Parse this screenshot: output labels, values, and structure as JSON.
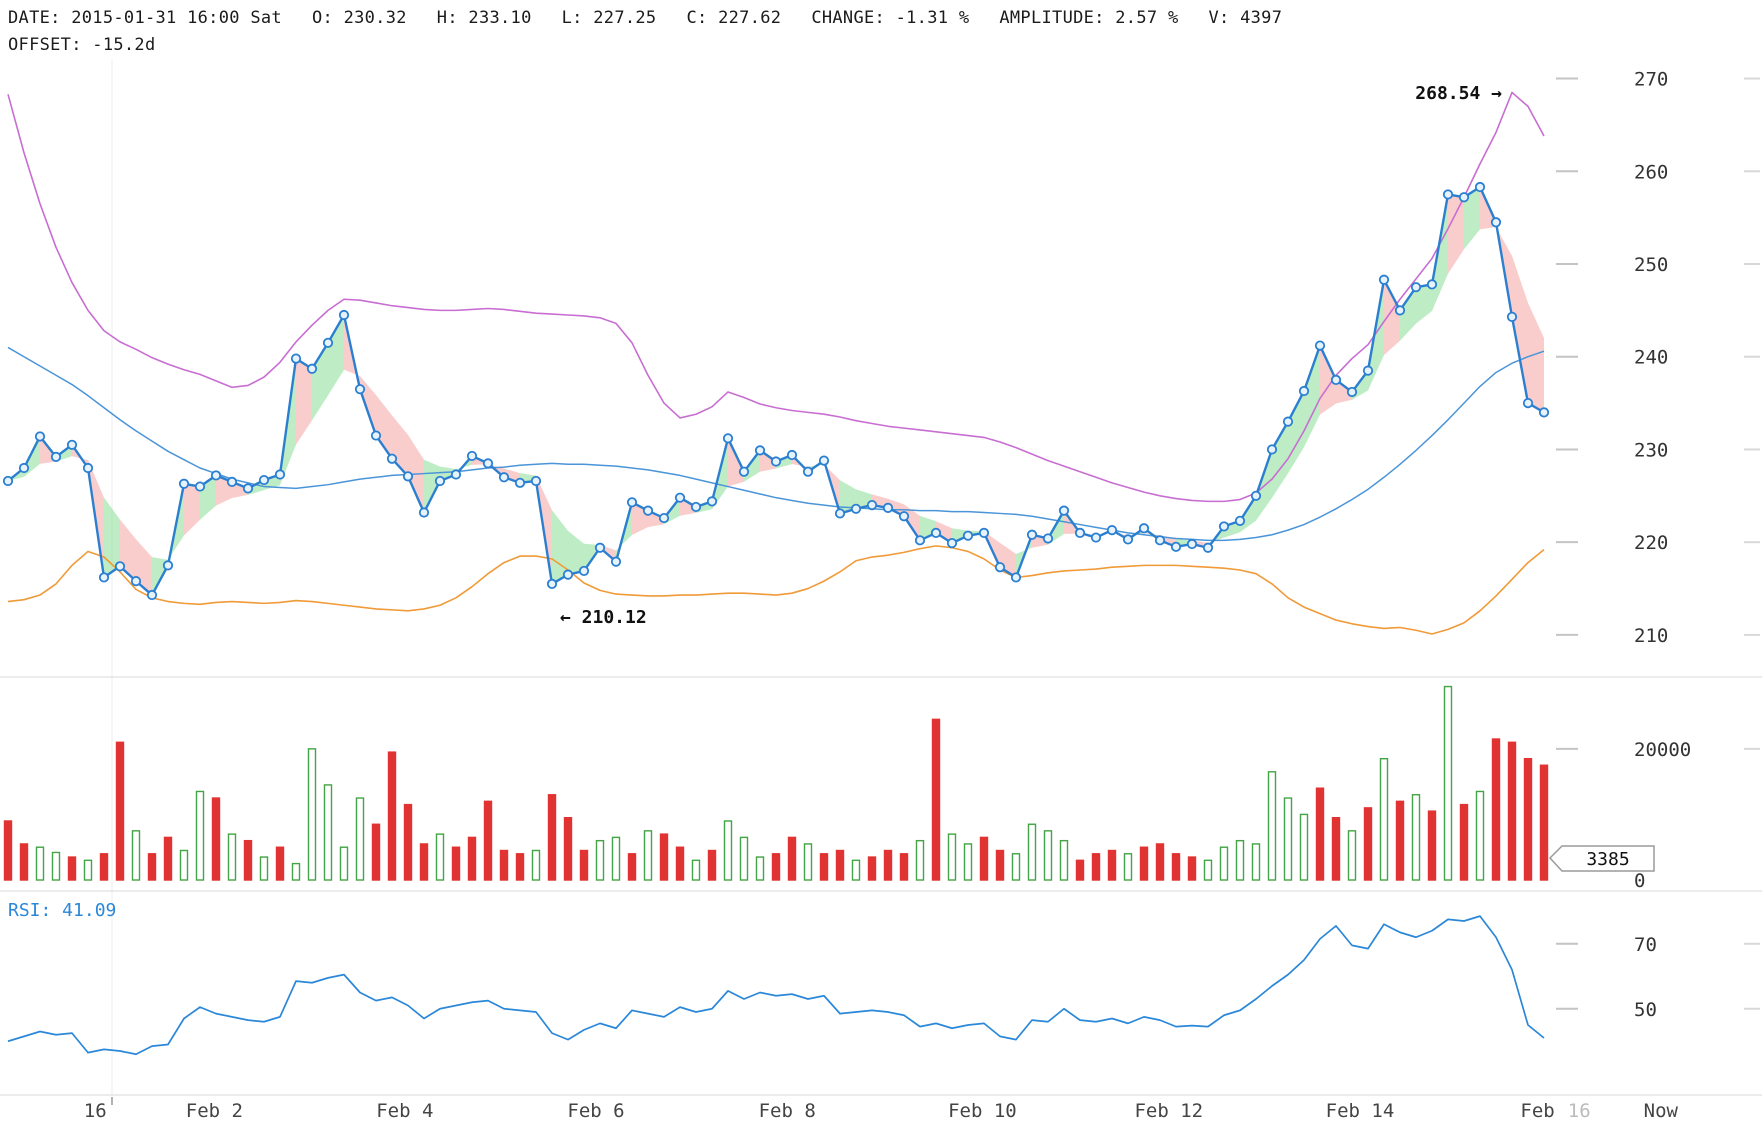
{
  "header": {
    "items": [
      {
        "label": "DATE:",
        "value": "2015-01-31 16:00 Sat"
      },
      {
        "label": "O:",
        "value": "230.32"
      },
      {
        "label": "H:",
        "value": "233.10"
      },
      {
        "label": "L:",
        "value": "227.25"
      },
      {
        "label": "C:",
        "value": "227.62"
      },
      {
        "label": "CHANGE:",
        "value": "-1.31 %"
      },
      {
        "label": "AMPLITUDE:",
        "value": "2.57 %"
      },
      {
        "label": "V:",
        "value": "4397"
      },
      {
        "label": "OFFSET:",
        "value": "-15.2d"
      }
    ]
  },
  "annotations": {
    "upper_band_max": "268.54 →",
    "lower_band_min": "← 210.12",
    "rsi_label": "RSI: 41.09"
  },
  "axes": {
    "price_ticks": [
      270,
      260,
      250,
      240,
      230,
      220,
      210
    ],
    "volume_ticks": [
      {
        "label": "20000",
        "value": 20000
      },
      {
        "label": "0",
        "value": 0
      }
    ],
    "volume_tag": "3385",
    "rsi_ticks": [
      {
        "label": "70",
        "value": 70
      },
      {
        "label": "50",
        "value": 50
      }
    ],
    "x_ticks": [
      {
        "label": "16",
        "i": 5.45,
        "muted": false
      },
      {
        "label": "Feb 2",
        "i": 12.9,
        "muted": false
      },
      {
        "label": "Feb 4",
        "i": 24.8,
        "muted": false
      },
      {
        "label": "Feb 6",
        "i": 36.75,
        "muted": false
      },
      {
        "label": "Feb 8",
        "i": 48.7,
        "muted": false
      },
      {
        "label": "Feb 10",
        "i": 60.9,
        "muted": false
      },
      {
        "label": "Feb 12",
        "i": 72.55,
        "muted": false
      },
      {
        "label": "Feb 14",
        "i": 84.5,
        "muted": false
      },
      {
        "label": "Feb",
        "i": 95.6,
        "muted": false
      },
      {
        "label": "16",
        "i": 98.2,
        "muted": true
      },
      {
        "label": "Now",
        "i": 103.3,
        "muted": false
      }
    ]
  },
  "colors": {
    "background": "#ffffff",
    "band_up": "#7ddc8c",
    "band_down": "#f59c9c",
    "marker_fill": "#e6f3fc",
    "divider": "#d9d9d9",
    "tick_dash": "#c4c4c4",
    "axis_text": "#333333",
    "muted_text": "#bcbcbc"
  },
  "chart_data": [
    {
      "type": "line",
      "title": "price",
      "ylim": [
        206,
        272
      ],
      "yticks": [
        210,
        220,
        230,
        240,
        250,
        260,
        270
      ],
      "series": [
        {
          "name": "close",
          "color": "#2b7fd0",
          "values": [
            226.6,
            228.0,
            231.4,
            229.2,
            230.5,
            228.0,
            216.2,
            217.4,
            215.8,
            214.3,
            217.5,
            226.3,
            226.0,
            227.2,
            226.5,
            225.8,
            226.7,
            227.3,
            239.8,
            238.7,
            241.5,
            244.5,
            236.5,
            231.5,
            229.0,
            227.1,
            223.2,
            226.6,
            227.3,
            229.3,
            228.5,
            227.0,
            226.4,
            226.6,
            215.5,
            216.5,
            216.9,
            219.4,
            217.9,
            224.3,
            223.4,
            222.6,
            224.8,
            223.8,
            224.4,
            231.2,
            227.6,
            229.9,
            228.7,
            229.4,
            227.6,
            228.8,
            223.1,
            223.6,
            224.0,
            223.7,
            222.8,
            220.2,
            221.0,
            219.9,
            220.7,
            221.0,
            217.3,
            216.2,
            220.8,
            220.4,
            223.4,
            221.0,
            220.5,
            221.3,
            220.3,
            221.5,
            220.2,
            219.5,
            219.8,
            219.4,
            221.7,
            222.3,
            225.0,
            230.0,
            233.0,
            236.3,
            241.2,
            237.5,
            236.2,
            238.5,
            248.3,
            245.0,
            247.5,
            247.8,
            257.5,
            257.2,
            258.3,
            254.5,
            244.3,
            235.0,
            234.0
          ]
        },
        {
          "name": "ma",
          "color": "#4a94d8",
          "values": [
            241.0,
            240.0,
            239.0,
            238.0,
            237.0,
            235.8,
            234.5,
            233.2,
            232.0,
            230.9,
            229.8,
            228.9,
            228.0,
            227.4,
            226.8,
            226.4,
            226.0,
            225.9,
            225.8,
            226.0,
            226.2,
            226.5,
            226.8,
            227.0,
            227.2,
            227.3,
            227.4,
            227.5,
            227.6,
            227.8,
            228.0,
            228.1,
            228.3,
            228.4,
            228.5,
            228.4,
            228.4,
            228.3,
            228.2,
            228.0,
            227.8,
            227.5,
            227.2,
            226.8,
            226.4,
            226.0,
            225.6,
            225.2,
            224.8,
            224.5,
            224.2,
            224.0,
            223.8,
            223.7,
            223.6,
            223.5,
            223.5,
            223.4,
            223.4,
            223.3,
            223.3,
            223.2,
            223.1,
            223.0,
            222.8,
            222.5,
            222.2,
            221.9,
            221.6,
            221.3,
            221.0,
            220.8,
            220.6,
            220.4,
            220.3,
            220.2,
            220.2,
            220.3,
            220.5,
            220.8,
            221.3,
            221.9,
            222.7,
            223.6,
            224.6,
            225.7,
            227.0,
            228.4,
            229.9,
            231.5,
            233.2,
            235.0,
            236.8,
            238.3,
            239.3,
            240.0,
            240.6
          ]
        },
        {
          "name": "upper-band",
          "color": "#c86ed2",
          "values": [
            268.3,
            262.0,
            256.5,
            251.8,
            248.0,
            245.0,
            242.8,
            241.6,
            240.8,
            239.9,
            239.2,
            238.6,
            238.1,
            237.4,
            236.7,
            236.9,
            237.8,
            239.4,
            241.6,
            243.4,
            245.0,
            246.2,
            246.1,
            245.8,
            245.5,
            245.3,
            245.1,
            245.0,
            245.0,
            245.1,
            245.2,
            245.1,
            244.9,
            244.7,
            244.6,
            244.5,
            244.4,
            244.2,
            243.6,
            241.5,
            238.0,
            235.0,
            233.4,
            233.8,
            234.6,
            236.2,
            235.6,
            234.9,
            234.5,
            234.2,
            234.0,
            233.8,
            233.5,
            233.1,
            232.8,
            232.5,
            232.3,
            232.1,
            231.9,
            231.7,
            231.5,
            231.3,
            230.8,
            230.2,
            229.5,
            228.8,
            228.2,
            227.6,
            227.0,
            226.4,
            225.9,
            225.4,
            225.0,
            224.7,
            224.5,
            224.4,
            224.4,
            224.6,
            225.3,
            226.8,
            229.0,
            232.0,
            235.5,
            238.0,
            239.8,
            241.3,
            243.8,
            246.2,
            248.4,
            250.6,
            253.8,
            257.2,
            260.8,
            264.2,
            268.5,
            267.0,
            263.8
          ]
        },
        {
          "name": "lower-band",
          "color": "#f09a38",
          "values": [
            213.6,
            213.8,
            214.3,
            215.5,
            217.5,
            219.0,
            218.4,
            216.8,
            214.9,
            214.0,
            213.6,
            213.4,
            213.3,
            213.5,
            213.6,
            213.5,
            213.4,
            213.5,
            213.7,
            213.6,
            213.4,
            213.2,
            213.0,
            212.8,
            212.7,
            212.6,
            212.8,
            213.2,
            214.0,
            215.2,
            216.6,
            217.8,
            218.5,
            218.5,
            218.2,
            217.0,
            215.6,
            214.8,
            214.4,
            214.3,
            214.2,
            214.2,
            214.3,
            214.3,
            214.4,
            214.5,
            214.5,
            214.4,
            214.3,
            214.5,
            215.0,
            215.8,
            216.8,
            218.0,
            218.4,
            218.6,
            218.9,
            219.3,
            219.6,
            219.4,
            219.0,
            218.2,
            217.0,
            216.2,
            216.4,
            216.7,
            216.9,
            217.0,
            217.1,
            217.3,
            217.4,
            217.5,
            217.5,
            217.5,
            217.4,
            217.3,
            217.2,
            217.0,
            216.6,
            215.5,
            214.0,
            213.0,
            212.3,
            211.6,
            211.2,
            210.9,
            210.7,
            210.8,
            210.5,
            210.1,
            210.6,
            211.3,
            212.6,
            214.2,
            216.0,
            217.8,
            219.2
          ]
        }
      ]
    },
    {
      "type": "bar",
      "title": "volume",
      "ylim": [
        0,
        30500
      ],
      "yticks": [
        0,
        20000
      ],
      "current": 3385,
      "up_color": "#44a344",
      "down_color": "#e23333",
      "values": [
        9000,
        5500,
        5000,
        4200,
        3500,
        3000,
        4000,
        21000,
        7500,
        4000,
        6500,
        4500,
        13500,
        12500,
        7000,
        6000,
        3500,
        5000,
        2500,
        20000,
        14500,
        5000,
        12500,
        8500,
        19500,
        11500,
        5500,
        7000,
        5000,
        6500,
        12000,
        4500,
        4000,
        4500,
        13000,
        9500,
        4500,
        6000,
        6500,
        4000,
        7500,
        7000,
        5000,
        3000,
        4500,
        9000,
        6500,
        3500,
        4000,
        6500,
        5500,
        4000,
        4500,
        3000,
        3500,
        4500,
        4000,
        6000,
        24500,
        7000,
        5500,
        6500,
        4500,
        4000,
        8500,
        7500,
        6000,
        3000,
        4000,
        4500,
        4000,
        5000,
        5500,
        4000,
        3500,
        3000,
        5000,
        6000,
        5500,
        16500,
        12500,
        10000,
        14000,
        9500,
        7500,
        11000,
        18500,
        12000,
        13000,
        10500,
        29500,
        11500,
        13500,
        21500,
        21000,
        18500,
        17500
      ],
      "directions": [
        "d",
        "d",
        "u",
        "u",
        "d",
        "u",
        "d",
        "d",
        "u",
        "d",
        "d",
        "u",
        "u",
        "d",
        "u",
        "d",
        "u",
        "d",
        "u",
        "u",
        "u",
        "u",
        "u",
        "d",
        "d",
        "d",
        "d",
        "u",
        "d",
        "d",
        "d",
        "d",
        "d",
        "u",
        "d",
        "d",
        "d",
        "u",
        "u",
        "d",
        "u",
        "d",
        "d",
        "u",
        "d",
        "u",
        "u",
        "u",
        "d",
        "d",
        "u",
        "d",
        "d",
        "u",
        "d",
        "d",
        "d",
        "u",
        "d",
        "u",
        "u",
        "d",
        "d",
        "u",
        "u",
        "u",
        "u",
        "d",
        "d",
        "d",
        "u",
        "d",
        "d",
        "d",
        "d",
        "u",
        "u",
        "u",
        "u",
        "u",
        "u",
        "u",
        "d",
        "d",
        "u",
        "d",
        "u",
        "d",
        "u",
        "d",
        "u",
        "d",
        "u",
        "d",
        "d",
        "d",
        "d"
      ]
    },
    {
      "type": "line",
      "title": "rsi",
      "ylim": [
        25,
        85
      ],
      "yticks": [
        50,
        70
      ],
      "current": 41.09,
      "color": "#2b87d8",
      "values": [
        40.0,
        41.5,
        43.0,
        42.0,
        42.5,
        36.5,
        37.5,
        37.0,
        36.0,
        38.5,
        39.0,
        47.0,
        50.5,
        48.5,
        47.5,
        46.5,
        46.0,
        47.5,
        58.5,
        58.0,
        59.5,
        60.5,
        55.0,
        52.5,
        53.5,
        51.0,
        47.0,
        50.0,
        51.0,
        52.0,
        52.5,
        50.0,
        49.5,
        49.0,
        42.5,
        40.5,
        43.5,
        45.5,
        44.0,
        49.5,
        48.5,
        47.5,
        50.5,
        49.0,
        50.0,
        55.5,
        53.0,
        55.0,
        54.0,
        54.5,
        53.0,
        54.0,
        48.5,
        49.0,
        49.5,
        49.0,
        48.0,
        44.5,
        45.5,
        44.0,
        45.0,
        45.5,
        41.5,
        40.5,
        46.5,
        46.0,
        50.0,
        46.5,
        46.0,
        47.0,
        45.5,
        47.5,
        46.5,
        44.5,
        44.8,
        44.5,
        48.0,
        49.5,
        53.0,
        57.0,
        60.5,
        65.0,
        71.5,
        75.5,
        69.5,
        68.5,
        76.0,
        73.5,
        72.0,
        74.0,
        77.5,
        77.0,
        78.5,
        72.0,
        62.0,
        45.0,
        41.0
      ]
    }
  ]
}
